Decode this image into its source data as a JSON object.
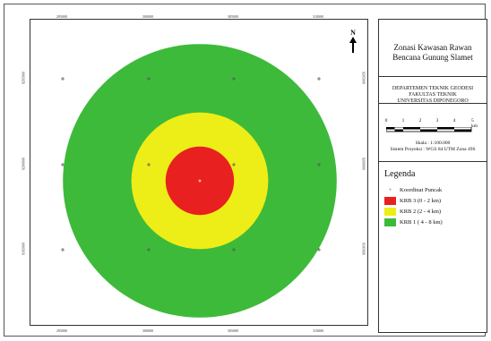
{
  "map": {
    "tick_labels_x": [
      "295000",
      "300000",
      "305000",
      "310000"
    ],
    "tick_labels_y": [
      "9205000",
      "9200000",
      "9195000"
    ],
    "north_label": "N",
    "zones": [
      {
        "name": "KRB 1",
        "radius_km": 8,
        "color": "#3dba3a"
      },
      {
        "name": "KRB 2",
        "radius_km": 4,
        "color": "#eded17"
      },
      {
        "name": "KRB 3",
        "radius_km": 2,
        "color": "#e82020"
      }
    ]
  },
  "panel": {
    "title_line1": "Zonasi Kawasan Rawan",
    "title_line2": "Bencana Gunung Slamet",
    "dept_line1": "DEPARTEMEN TEKNIK GEODESI",
    "dept_line2": "FAKULTAS TEKNIK",
    "dept_line3": "UNIVERSITAS DIPONEGORO",
    "scale_ticks": [
      "0",
      "1",
      "2",
      "3",
      "4",
      "5 km"
    ],
    "scale_text": "Skala : 1:100.000",
    "projection_text": "Sistem Proyeksi : WGS 84 UTM Zona 49S"
  },
  "legend": {
    "title": "Legenda",
    "items": [
      {
        "label": "Koordinat Puncak",
        "color": "#555555",
        "type": "marker"
      },
      {
        "label": "KRB 3 (0 - 2 km)",
        "color": "#e82020",
        "type": "fill"
      },
      {
        "label": "KRB 2 (2 - 4 km)",
        "color": "#eded17",
        "type": "fill"
      },
      {
        "label": "KRB 1 ( 4 - 8 km)",
        "color": "#3dba3a",
        "type": "fill"
      }
    ]
  }
}
